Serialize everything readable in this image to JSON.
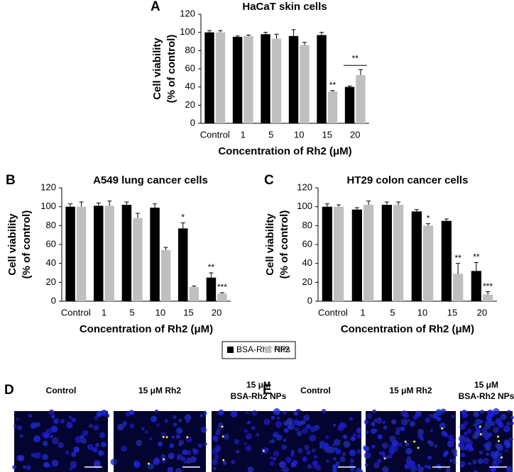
{
  "chart_data": [
    {
      "type": "bar",
      "panel": "A",
      "title": "HaCaT skin cells",
      "ylabel": [
        "Cell viability",
        "(% of control)"
      ],
      "xlabel": "Concentration of Rh2 (μM)",
      "categories": [
        "Control",
        "1",
        "5",
        "10",
        "15",
        "20"
      ],
      "ylim": [
        0,
        120
      ],
      "yticks": [
        0,
        20,
        40,
        60,
        80,
        100,
        120
      ],
      "series": [
        {
          "name": "BSA-Rh2 NPs",
          "color": "#000000",
          "values": [
            100,
            95,
            98,
            96,
            97,
            40
          ],
          "errors": [
            2,
            1,
            2,
            7,
            3,
            1
          ],
          "annotations": [
            null,
            null,
            null,
            null,
            null,
            null
          ]
        },
        {
          "name": "Rh2",
          "color": "#bfbfbf",
          "values": [
            100,
            96,
            93,
            86,
            35,
            53
          ],
          "errors": [
            2,
            1,
            5,
            3,
            1,
            6
          ],
          "annotations": [
            null,
            null,
            null,
            null,
            "**",
            null
          ]
        }
      ],
      "bracket_annotations": [
        {
          "category": "20",
          "text": "**"
        }
      ]
    },
    {
      "type": "bar",
      "panel": "B",
      "title": "A549 lung cancer cells",
      "ylabel": [
        "Cell viability",
        "(% of control)"
      ],
      "xlabel": "Concentration of Rh2 (μM)",
      "categories": [
        "Control",
        "1",
        "5",
        "10",
        "15",
        "20"
      ],
      "ylim": [
        0,
        120
      ],
      "yticks": [
        0,
        20,
        40,
        60,
        80,
        100,
        120
      ],
      "series": [
        {
          "color": "#000000",
          "values": [
            100,
            101,
            102,
            99,
            77,
            25
          ],
          "errors": [
            3,
            3,
            3,
            4,
            6,
            5
          ],
          "annotations": [
            null,
            null,
            null,
            null,
            "*",
            "**"
          ]
        },
        {
          "color": "#bfbfbf",
          "values": [
            100,
            101,
            88,
            54,
            15,
            8
          ],
          "errors": [
            5,
            5,
            5,
            3,
            1,
            1
          ],
          "annotations": [
            null,
            null,
            null,
            null,
            null,
            "***"
          ]
        }
      ]
    },
    {
      "type": "bar",
      "panel": "C",
      "title": "HT29 colon cancer cells",
      "ylabel": [
        "Cell viability",
        "(% of control)"
      ],
      "xlabel": "Concentration of Rh2 (μM)",
      "categories": [
        "Control",
        "1",
        "5",
        "10",
        "15",
        "20"
      ],
      "ylim": [
        0,
        120
      ],
      "yticks": [
        0,
        20,
        40,
        60,
        80,
        100,
        120
      ],
      "series": [
        {
          "color": "#000000",
          "values": [
            100,
            97,
            102,
            95,
            85,
            32
          ],
          "errors": [
            3,
            2,
            3,
            2,
            2,
            9
          ],
          "annotations": [
            null,
            null,
            null,
            null,
            null,
            "**"
          ]
        },
        {
          "color": "#bfbfbf",
          "values": [
            100,
            102,
            102,
            80,
            29,
            7
          ],
          "errors": [
            2,
            4,
            3,
            2,
            11,
            3
          ],
          "annotations": [
            null,
            null,
            null,
            "*",
            "**",
            "***"
          ]
        }
      ]
    }
  ],
  "images": [
    {
      "panel": "D",
      "labels": [
        [
          "Control"
        ],
        [
          "15 μM Rh2"
        ],
        [
          "15 μM",
          "BSA-Rh2 NPs"
        ]
      ]
    },
    {
      "panel": "E",
      "labels": [
        [
          "Control"
        ],
        [
          "15 μM Rh2"
        ],
        [
          "15 μM",
          "BSA-Rh2 NPs"
        ]
      ]
    }
  ]
}
